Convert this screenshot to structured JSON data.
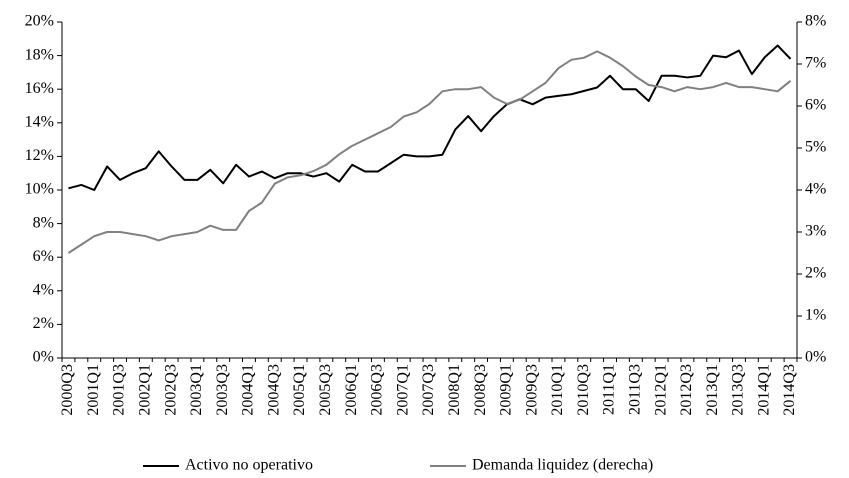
{
  "chart_data": {
    "type": "line",
    "categories": [
      "2000Q3",
      null,
      "2001Q1",
      null,
      "2001Q3",
      null,
      "2002Q1",
      null,
      "2002Q3",
      null,
      "2003Q1",
      null,
      "2003Q3",
      null,
      "2004Q1",
      null,
      "2004Q3",
      null,
      "2005Q1",
      null,
      "2005Q3",
      null,
      "2006Q1",
      null,
      "2006Q3",
      null,
      "2007Q1",
      null,
      "2007Q3",
      null,
      "2008Q1",
      null,
      "2008Q3",
      null,
      "2009Q1",
      null,
      "2009Q3",
      null,
      "2010Q1",
      null,
      "2010Q3",
      null,
      "2011Q1",
      null,
      "2011Q3",
      null,
      "2012Q1",
      null,
      "2012Q3",
      null,
      "2013Q1",
      null,
      "2013Q3",
      null,
      "2014Q1",
      null,
      "2014Q3"
    ],
    "series": [
      {
        "name": "Activo no operativo",
        "color": "#000000",
        "values": [
          10.1,
          10.3,
          10.0,
          11.4,
          10.6,
          11.0,
          11.3,
          12.3,
          11.4,
          10.6,
          10.6,
          11.2,
          10.4,
          11.5,
          10.8,
          11.1,
          10.7,
          11.0,
          11.0,
          10.8,
          11.0,
          10.5,
          11.5,
          11.1,
          11.1,
          11.6,
          12.1,
          12.0,
          12.0,
          12.1,
          13.6,
          14.4,
          13.5,
          14.4,
          15.1,
          15.4,
          15.1,
          15.5,
          15.6,
          15.7,
          15.9,
          16.1,
          16.8,
          16.0,
          16.0,
          15.3,
          16.8,
          16.8,
          16.7,
          16.8,
          18.0,
          17.9,
          18.3,
          16.9,
          17.9,
          18.6,
          17.8
        ]
      },
      {
        "name": "Demanda liquidez (derecha)",
        "color": "#808080",
        "axis": "y2",
        "values": [
          2.5,
          2.7,
          2.9,
          3.0,
          3.0,
          2.95,
          2.9,
          2.8,
          2.9,
          2.95,
          3.0,
          3.15,
          3.05,
          3.05,
          3.5,
          3.7,
          4.15,
          4.3,
          4.35,
          4.45,
          4.6,
          4.85,
          5.05,
          5.2,
          5.35,
          5.5,
          5.75,
          5.85,
          6.05,
          6.35,
          6.4,
          6.4,
          6.45,
          6.2,
          6.05,
          6.15,
          6.35,
          6.55,
          6.9,
          7.1,
          7.15,
          7.3,
          7.15,
          6.95,
          6.7,
          6.5,
          6.45,
          6.35,
          6.45,
          6.4,
          6.45,
          6.55,
          6.45,
          6.45,
          6.4,
          6.35,
          6.6
        ]
      }
    ],
    "ylim": [
      0,
      20
    ],
    "yticks": [
      {
        "value": 0,
        "label": "0%"
      },
      {
        "value": 2,
        "label": "2%"
      },
      {
        "value": 4,
        "label": "4%"
      },
      {
        "value": 6,
        "label": "6%"
      },
      {
        "value": 8,
        "label": "8%"
      },
      {
        "value": 10,
        "label": "10%"
      },
      {
        "value": 12,
        "label": "12%"
      },
      {
        "value": 14,
        "label": "14%"
      },
      {
        "value": 16,
        "label": "16%"
      },
      {
        "value": 18,
        "label": "18%"
      },
      {
        "value": 20,
        "label": "20%"
      }
    ],
    "y2lim": [
      0,
      8
    ],
    "y2ticks": [
      {
        "value": 0,
        "label": "0%"
      },
      {
        "value": 1,
        "label": "1%"
      },
      {
        "value": 2,
        "label": "2%"
      },
      {
        "value": 3,
        "label": "3%"
      },
      {
        "value": 4,
        "label": "4%"
      },
      {
        "value": 5,
        "label": "5%"
      },
      {
        "value": 6,
        "label": "6%"
      },
      {
        "value": 7,
        "label": "7%"
      },
      {
        "value": 8,
        "label": "8%"
      }
    ],
    "legend": "bottom"
  }
}
